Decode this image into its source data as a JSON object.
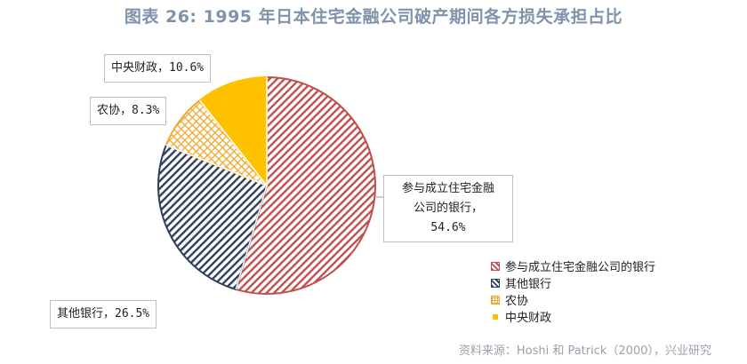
{
  "title": "图表 26: 1995 年日本住宅金融公司破产期间各方损失承担占比",
  "source": "资料来源：Hoshi 和 Patrick（2000），兴业研究",
  "chart_data": {
    "type": "pie",
    "title": "图表 26: 1995 年日本住宅金融公司破产期间各方损失承担占比",
    "slices": [
      {
        "label": "参与成立住宅金融公司的银行",
        "value": 54.6,
        "color": "#c0504d",
        "pattern": "diagonal"
      },
      {
        "label": "其他银行",
        "value": 26.5,
        "color": "#2f3f5e",
        "pattern": "diagonal"
      },
      {
        "label": "农协",
        "value": 8.3,
        "color": "#f0a830",
        "pattern": "crosshatch"
      },
      {
        "label": "中央财政",
        "value": 10.6,
        "color": "#ffc000",
        "pattern": "solid"
      }
    ],
    "data_labels": [
      "参与成立住宅金融公司的银行，54.6%",
      "其他银行，26.5%",
      "农协，8.3%",
      "中央财政，10.6%"
    ],
    "legend_position": "bottom-right"
  },
  "labels": {
    "bank_main_line1": "参与成立住宅金融",
    "bank_main_line2": "公司的银行，",
    "bank_main_line3": "54.6%",
    "other_banks": "其他银行，26.5%",
    "nokyo": "农协，8.3%",
    "central": "中央财政，10.6%"
  }
}
